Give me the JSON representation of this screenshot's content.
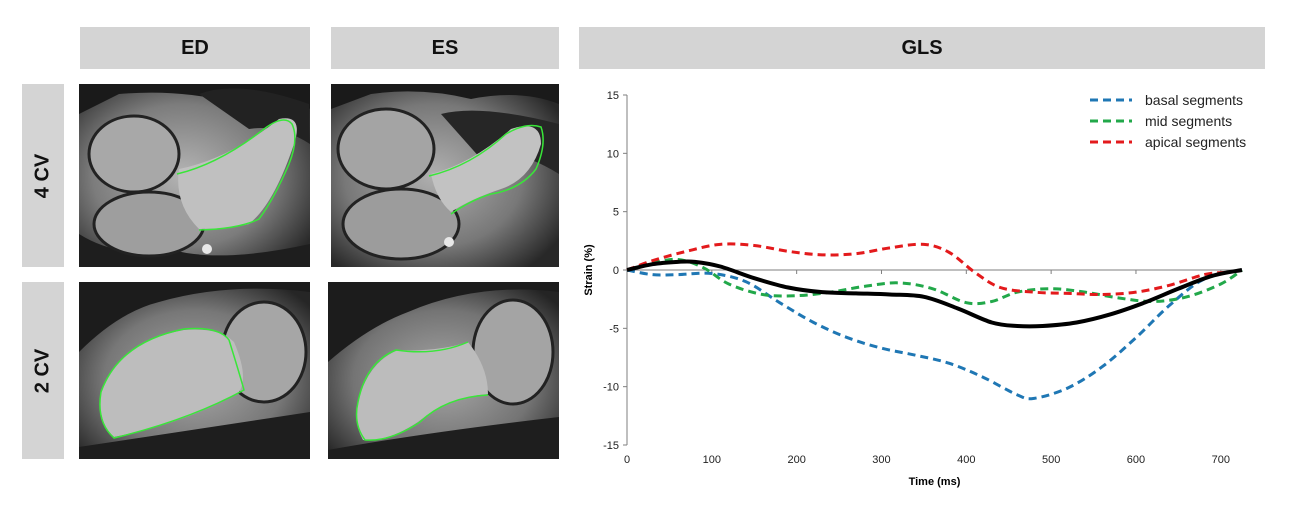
{
  "headers": {
    "ed": "ED",
    "es": "ES",
    "gls": "GLS"
  },
  "row_labels": {
    "four_cv": "4 CV",
    "two_cv": "2 CV"
  },
  "colors": {
    "basal": "#1f77b4",
    "mid": "#22a84a",
    "apical": "#e31a1c",
    "global": "#000000",
    "contour": "#39e639"
  },
  "chart_data": {
    "type": "line",
    "title": "",
    "xlabel": "Time (ms)",
    "ylabel": "Strain (%)",
    "xlim": [
      0,
      725
    ],
    "ylim": [
      -15,
      15
    ],
    "xticks": [
      0,
      100,
      200,
      300,
      400,
      500,
      600,
      700
    ],
    "yticks": [
      15,
      10,
      5,
      0,
      -5,
      -10,
      -15
    ],
    "grid": false,
    "legend_position": "top-right",
    "series": [
      {
        "name": "basal segments",
        "style": "dashed",
        "color": "#1f77b4",
        "x": [
          0,
          30,
          60,
          100,
          140,
          180,
          220,
          260,
          300,
          340,
          380,
          420,
          460,
          480,
          520,
          560,
          600,
          640,
          680,
          725
        ],
        "y": [
          0,
          -0.4,
          -0.4,
          -0.3,
          -1,
          -2.8,
          -4.5,
          -5.8,
          -6.7,
          -7.3,
          -8,
          -9.2,
          -10.7,
          -11,
          -10.1,
          -8.3,
          -5.8,
          -3,
          -0.8,
          0
        ]
      },
      {
        "name": "mid segments",
        "style": "dashed",
        "color": "#22a84a",
        "x": [
          0,
          30,
          60,
          90,
          120,
          160,
          200,
          240,
          280,
          320,
          360,
          400,
          430,
          460,
          500,
          540,
          580,
          620,
          660,
          700,
          725
        ],
        "y": [
          0,
          0.6,
          0.9,
          0.2,
          -1.2,
          -2.1,
          -2.2,
          -1.9,
          -1.4,
          -1.1,
          -1.6,
          -2.8,
          -2.7,
          -1.9,
          -1.6,
          -1.9,
          -2.4,
          -2.7,
          -2.3,
          -1.2,
          0
        ]
      },
      {
        "name": "apical segments",
        "style": "dashed",
        "color": "#e31a1c",
        "x": [
          0,
          30,
          70,
          110,
          150,
          190,
          230,
          270,
          310,
          350,
          380,
          410,
          440,
          480,
          520,
          560,
          600,
          640,
          680,
          705
        ],
        "y": [
          0,
          0.8,
          1.6,
          2.2,
          2.1,
          1.6,
          1.3,
          1.4,
          1.9,
          2.2,
          1.5,
          -0.2,
          -1.5,
          -1.9,
          -2,
          -2.1,
          -1.9,
          -1.3,
          -0.4,
          -0.2
        ]
      },
      {
        "name": "",
        "style": "solid",
        "color": "#000000",
        "x": [
          0,
          30,
          60,
          80,
          110,
          150,
          190,
          230,
          270,
          310,
          350,
          390,
          430,
          460,
          490,
          530,
          570,
          610,
          650,
          690,
          725
        ],
        "y": [
          0,
          0.5,
          0.7,
          0.7,
          0.3,
          -0.7,
          -1.5,
          -1.9,
          -2,
          -2.1,
          -2.3,
          -3.3,
          -4.5,
          -4.8,
          -4.8,
          -4.5,
          -3.8,
          -2.8,
          -1.6,
          -0.5,
          0
        ]
      }
    ]
  }
}
